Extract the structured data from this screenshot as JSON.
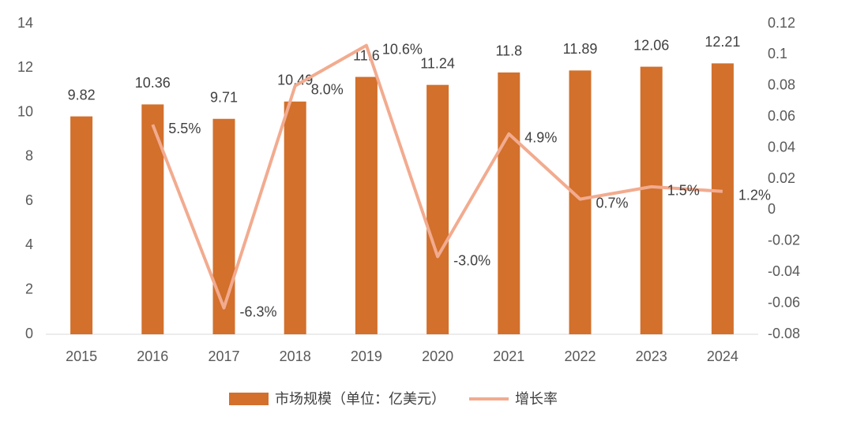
{
  "chart_data": {
    "type": "bar",
    "categories": [
      "2015",
      "2016",
      "2017",
      "2018",
      "2019",
      "2020",
      "2021",
      "2022",
      "2023",
      "2024"
    ],
    "series": [
      {
        "name": "市场规模（单位：亿美元）",
        "type": "bar",
        "color": "#d2702c",
        "values": [
          9.82,
          10.36,
          9.71,
          10.49,
          11.6,
          11.24,
          11.8,
          11.89,
          12.06,
          12.21
        ]
      },
      {
        "name": "增长率",
        "type": "line",
        "axis": "y2",
        "color": "#f2ab8f",
        "values": [
          null,
          0.055,
          -0.063,
          0.08,
          0.106,
          -0.03,
          0.049,
          0.007,
          0.015,
          0.012
        ],
        "value_labels": [
          null,
          "5.5%",
          "-6.3%",
          "8.0%",
          "10.6%",
          "-3.0%",
          "4.9%",
          "0.7%",
          "1.5%",
          "1.2%"
        ]
      }
    ],
    "ylim": [
      0,
      14
    ],
    "yticks": [
      0,
      2,
      4,
      6,
      8,
      10,
      12,
      14
    ],
    "y2lim": [
      -0.08,
      0.12
    ],
    "y2ticks": [
      -0.08,
      -0.06,
      -0.04,
      -0.02,
      0,
      0.02,
      0.04,
      0.06,
      0.08,
      0.1,
      0.12
    ],
    "legend": "bottom"
  }
}
